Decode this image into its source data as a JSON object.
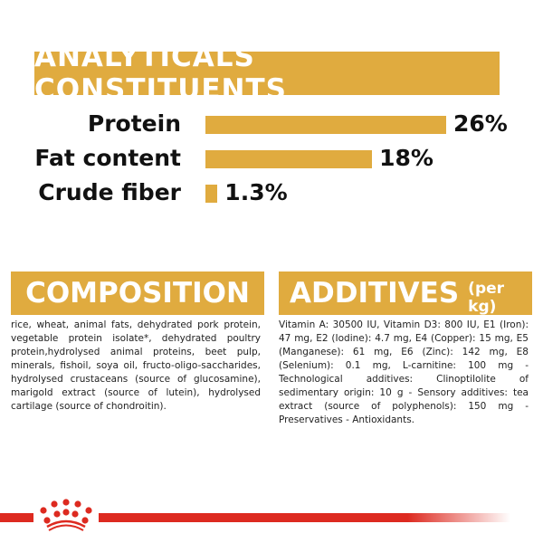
{
  "header": {
    "title": "ANALYTICALS CONSTITUENTS"
  },
  "constituents": [
    {
      "label": "Protein",
      "value": 26,
      "display": "26%"
    },
    {
      "label": "Fat content",
      "value": 18,
      "display": "18%"
    },
    {
      "label": "Crude fiber",
      "value": 1.3,
      "display": "1.3%"
    }
  ],
  "composition": {
    "title": "COMPOSITION",
    "text": "rice, wheat, animal fats, dehydrated pork protein, vegetable protein isolate*, dehydrated poultry protein,hydrolysed animal proteins, beet pulp, minerals, fishoil, soya oil, fructo-oligo-saccharides, hydrolysed crustaceans (source of glucosamine), marigold extract (source of lutein), hydrolysed cartilage (source of chondroitin)."
  },
  "additives": {
    "title": "ADDITIVES",
    "unit": "(per kg)",
    "text": "Vitamin A: 30500 IU, Vitamin D3: 800 IU, E1 (Iron): 47 mg, E2 (Iodine): 4.7 mg, E4 (Copper): 15 mg, E5 (Manganese): 61 mg, E6 (Zinc): 142 mg, E8 (Selenium): 0.1 mg, L-carnitine: 100 mg - Technological additives: Clinoptilolite of sedimentary origin: 10 g - Sensory additives: tea extract (source of polyphenols): 150 mg - Preservatives - Antioxidants."
  },
  "colors": {
    "accent": "#e0ab3f",
    "brand_red": "#dd2a20"
  },
  "footer": {
    "logo_icon": "crown-icon"
  }
}
